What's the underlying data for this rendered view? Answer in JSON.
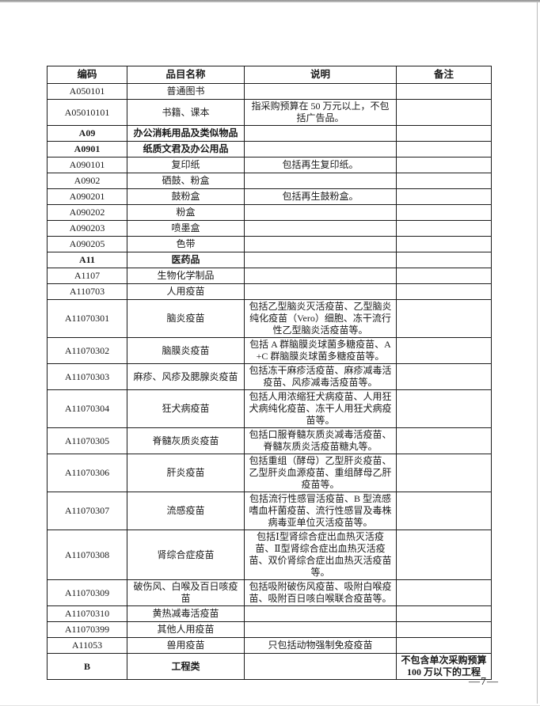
{
  "page": {
    "page_number": "—7—"
  },
  "table": {
    "headers": [
      "编码",
      "品目名称",
      "说明",
      "备注"
    ],
    "rows": [
      {
        "code": "A050101",
        "name": "普通图书",
        "desc": "",
        "note": "",
        "bold": false
      },
      {
        "code": "A05010101",
        "name": "书籍、课本",
        "desc": "指采购预算在 50 万元以上，不包括广告品。",
        "note": "",
        "bold": false
      },
      {
        "code": "A09",
        "name": "办公消耗用品及类似物品",
        "desc": "",
        "note": "",
        "bold": true
      },
      {
        "code": "A0901",
        "name": "纸质文君及办公用品",
        "desc": "",
        "note": "",
        "bold": true
      },
      {
        "code": "A090101",
        "name": "复印纸",
        "desc": "包括再生复印纸。",
        "note": "",
        "bold": false
      },
      {
        "code": "A0902",
        "name": "硒鼓、粉盒",
        "desc": "",
        "note": "",
        "bold": false
      },
      {
        "code": "A090201",
        "name": "鼓粉盒",
        "desc": "包括再生鼓粉盒。",
        "note": "",
        "bold": false
      },
      {
        "code": "A090202",
        "name": "粉盒",
        "desc": "",
        "note": "",
        "bold": false
      },
      {
        "code": "A090203",
        "name": "喷墨盒",
        "desc": "",
        "note": "",
        "bold": false
      },
      {
        "code": "A090205",
        "name": "色带",
        "desc": "",
        "note": "",
        "bold": false
      },
      {
        "code": "A11",
        "name": "医药品",
        "desc": "",
        "note": "",
        "bold": true
      },
      {
        "code": "A1107",
        "name": "生物化学制品",
        "desc": "",
        "note": "",
        "bold": false
      },
      {
        "code": "A110703",
        "name": "人用疫苗",
        "desc": "",
        "note": "",
        "bold": false
      },
      {
        "code": "A11070301",
        "name": "脑炎疫苗",
        "desc": "包括乙型脑炎灭活疫苗、乙型脑炎纯化疫苗（Vero）细胞、冻干流行性乙型脑炎活疫苗等。",
        "note": "",
        "bold": false
      },
      {
        "code": "A11070302",
        "name": "脑膜炎疫苗",
        "desc": "包括 A 群脑膜炎球菌多糖疫苗、A+C 群脑膜炎球菌多糖疫苗等。",
        "note": "",
        "bold": false
      },
      {
        "code": "A11070303",
        "name": "麻疹、风疹及腮腺炎疫苗",
        "desc": "包括冻干麻疹活疫苗、麻疹减毒活疫苗、风疹减毒活疫苗等。",
        "note": "",
        "bold": false
      },
      {
        "code": "A11070304",
        "name": "狂犬病疫苗",
        "desc": "包括人用浓缩狂犬病疫苗、人用狂犬病纯化疫苗、冻干人用狂犬病疫苗等。",
        "note": "",
        "bold": false
      },
      {
        "code": "A11070305",
        "name": "脊髓灰质炎疫苗",
        "desc": "包括口服脊髓灰质炎减毒活疫苗、脊髓灰质炎活疫苗糖丸等。",
        "note": "",
        "bold": false
      },
      {
        "code": "A11070306",
        "name": "肝炎疫苗",
        "desc": "包括重组（酵母）乙型肝炎疫苗、乙型肝炎血源疫苗、重组酵母乙肝疫苗等。",
        "note": "",
        "bold": false
      },
      {
        "code": "A11070307",
        "name": "流感疫苗",
        "desc": "包括流行性感冒活疫苗、B 型流感嗜血杆菌疫苗、流行性感冒及毒株病毒亚单位灭活疫苗等。",
        "note": "",
        "bold": false
      },
      {
        "code": "A11070308",
        "name": "肾综合症疫苗",
        "desc": "包括Ⅰ型肾综合症出血热灭活疫苗、Ⅱ型肾综合症出血热灭活疫苗、双价肾综合症出血热灭活疫苗等。",
        "note": "",
        "bold": false
      },
      {
        "code": "A11070309",
        "name": "破伤风、白喉及百日咳疫苗",
        "desc": "包括吸附破伤风疫苗、吸附白喉疫苗、吸附百日咳白喉联合疫苗等。",
        "note": "",
        "bold": false
      },
      {
        "code": "A11070310",
        "name": "黄热减毒活疫苗",
        "desc": "",
        "note": "",
        "bold": false
      },
      {
        "code": "A11070399",
        "name": "其他人用疫苗",
        "desc": "",
        "note": "",
        "bold": false
      },
      {
        "code": "A11053",
        "name": "兽用疫苗",
        "desc": "只包括动物强制免疫疫苗",
        "note": "",
        "bold": false
      },
      {
        "code": "B",
        "name": "工程类",
        "desc": "",
        "note": "不包含单次采购预算 100 万以下的工程",
        "bold": true
      }
    ]
  }
}
